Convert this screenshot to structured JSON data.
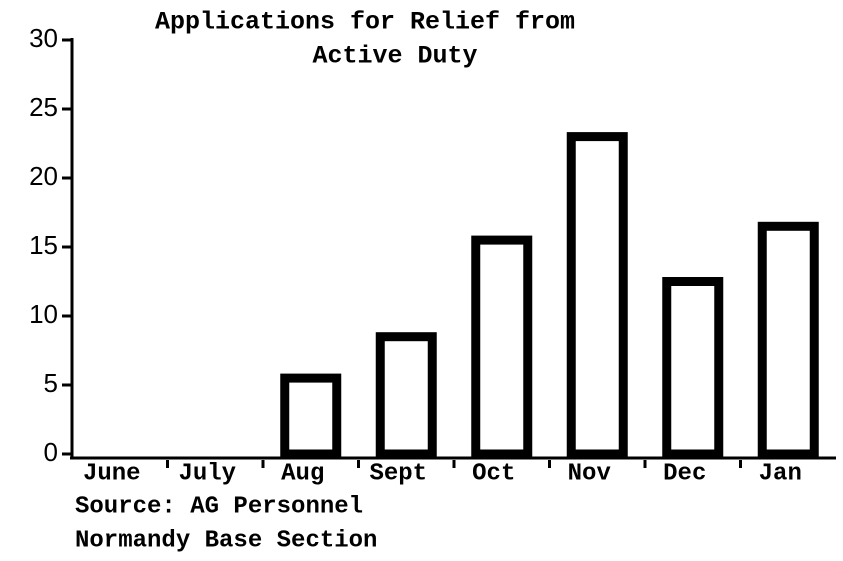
{
  "chart_data": {
    "type": "bar",
    "title": [
      "Applications for Relief from",
      "Active Duty"
    ],
    "annotations": [
      "Source:  AG Personnel",
      "Normandy Base Section"
    ],
    "categories": [
      "June",
      "July",
      "Aug",
      "Sept",
      "Oct",
      "Nov",
      "Dec",
      "Jan"
    ],
    "values": [
      0,
      0,
      5.5,
      8.5,
      15.5,
      23,
      12.5,
      16.5
    ],
    "color": "#000000",
    "ylim": [
      0,
      30
    ],
    "yticks": [
      0,
      5,
      10,
      15,
      20,
      25,
      30
    ],
    "grid": false
  }
}
